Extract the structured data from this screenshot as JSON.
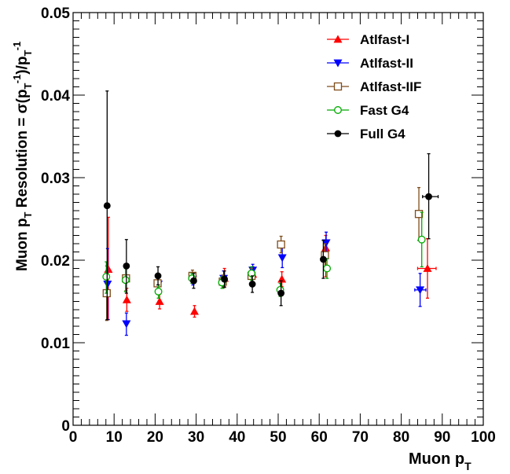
{
  "chart_data": {
    "type": "scatter",
    "title": "",
    "xlabel": "Muon p",
    "xlabel_sub": "T",
    "ylabel_parts": {
      "a": "Muon p",
      "a_sub": "T",
      "b": " Resolution = σ(p",
      "b_sub": "T",
      "b_sup": "-1",
      "c": ")/p",
      "c_sub": "T",
      "c_sup": "-1"
    },
    "xlim": [
      0,
      100
    ],
    "ylim": [
      0,
      0.05
    ],
    "x_ticks": [
      "0",
      "10",
      "20",
      "30",
      "40",
      "50",
      "60",
      "70",
      "80",
      "90",
      "100"
    ],
    "y_ticks": [
      "0",
      "0.01",
      "0.02",
      "0.03",
      "0.04",
      "0.05"
    ],
    "legend_position": "top-right",
    "series": [
      {
        "name": "Atlfast-I",
        "color": "#ff0000",
        "marker": "triangle-up",
        "points": [
          {
            "x": 8.6,
            "y": 0.0189,
            "ylo": 0.0128,
            "yhi": 0.0252
          },
          {
            "x": 13.1,
            "y": 0.0152,
            "ylo": 0.0138,
            "yhi": 0.0166
          },
          {
            "x": 21.1,
            "y": 0.015,
            "ylo": 0.0141,
            "yhi": 0.0159
          },
          {
            "x": 29.6,
            "y": 0.0138,
            "ylo": 0.0131,
            "yhi": 0.0145
          },
          {
            "x": 36.9,
            "y": 0.0178,
            "ylo": 0.0168,
            "yhi": 0.019
          },
          {
            "x": 43.8,
            "y": 0.0183,
            "ylo": 0.0174,
            "yhi": 0.0192
          },
          {
            "x": 50.9,
            "y": 0.0177,
            "ylo": 0.0168,
            "yhi": 0.0186
          },
          {
            "x": 61.6,
            "y": 0.0215,
            "ylo": 0.018,
            "yhi": 0.023
          },
          {
            "x": 86.4,
            "y": 0.019,
            "ylo": 0.0154,
            "yhi": 0.0226,
            "xlo": 84.0,
            "xhi": 88.5
          }
        ]
      },
      {
        "name": "Atlfast-II",
        "color": "#0000ff",
        "marker": "triangle-down",
        "points": [
          {
            "x": 8.4,
            "y": 0.0171,
            "ylo": 0.0128,
            "yhi": 0.0214
          },
          {
            "x": 13.0,
            "y": 0.0123,
            "ylo": 0.0109,
            "yhi": 0.0136
          },
          {
            "x": 20.8,
            "y": 0.0171,
            "ylo": 0.0162,
            "yhi": 0.018
          },
          {
            "x": 29.2,
            "y": 0.0177,
            "ylo": 0.017,
            "yhi": 0.0184
          },
          {
            "x": 36.7,
            "y": 0.0178,
            "ylo": 0.0169,
            "yhi": 0.0187
          },
          {
            "x": 43.8,
            "y": 0.0188,
            "ylo": 0.018,
            "yhi": 0.0195
          },
          {
            "x": 51.0,
            "y": 0.0203,
            "ylo": 0.0191,
            "yhi": 0.0215
          },
          {
            "x": 61.7,
            "y": 0.0221,
            "ylo": 0.0208,
            "yhi": 0.0234
          },
          {
            "x": 84.6,
            "y": 0.0164,
            "ylo": 0.0144,
            "yhi": 0.0184,
            "xlo": 83.3,
            "xhi": 86.0
          }
        ]
      },
      {
        "name": "Atlfast-IIF",
        "color": "#7f4c1a",
        "marker": "square-open",
        "points": [
          {
            "x": 8.2,
            "y": 0.016,
            "ylo": 0.0127,
            "yhi": 0.0193
          },
          {
            "x": 12.9,
            "y": 0.0178,
            "ylo": 0.0163,
            "yhi": 0.0192
          },
          {
            "x": 20.6,
            "y": 0.0172,
            "ylo": 0.0163,
            "yhi": 0.0181
          },
          {
            "x": 29.1,
            "y": 0.0181,
            "ylo": 0.0174,
            "yhi": 0.0188
          },
          {
            "x": 36.5,
            "y": 0.0174,
            "ylo": 0.0166,
            "yhi": 0.0182
          },
          {
            "x": 43.5,
            "y": 0.0181,
            "ylo": 0.0172,
            "yhi": 0.019
          },
          {
            "x": 50.7,
            "y": 0.0219,
            "ylo": 0.0209,
            "yhi": 0.0229
          },
          {
            "x": 61.4,
            "y": 0.0206,
            "ylo": 0.0192,
            "yhi": 0.022
          },
          {
            "x": 84.3,
            "y": 0.0256,
            "ylo": 0.0224,
            "yhi": 0.0288
          }
        ]
      },
      {
        "name": "Fast G4",
        "color": "#00aa00",
        "marker": "circle-open",
        "points": [
          {
            "x": 8.1,
            "y": 0.018,
            "ylo": 0.016,
            "yhi": 0.0198
          },
          {
            "x": 12.8,
            "y": 0.0176,
            "ylo": 0.0162,
            "yhi": 0.019
          },
          {
            "x": 20.8,
            "y": 0.0162,
            "ylo": 0.0154,
            "yhi": 0.017
          },
          {
            "x": 29.0,
            "y": 0.0178,
            "ylo": 0.0172,
            "yhi": 0.0184
          },
          {
            "x": 36.3,
            "y": 0.0173,
            "ylo": 0.0166,
            "yhi": 0.018
          },
          {
            "x": 43.5,
            "y": 0.0184,
            "ylo": 0.0176,
            "yhi": 0.0192
          },
          {
            "x": 50.5,
            "y": 0.0164,
            "ylo": 0.0156,
            "yhi": 0.0172
          },
          {
            "x": 61.9,
            "y": 0.019,
            "ylo": 0.0178,
            "yhi": 0.0202
          },
          {
            "x": 85.0,
            "y": 0.0225,
            "ylo": 0.0192,
            "yhi": 0.0258
          }
        ]
      },
      {
        "name": "Full G4",
        "color": "#000000",
        "marker": "circle-filled",
        "points": [
          {
            "x": 8.3,
            "y": 0.0266,
            "ylo": 0.0128,
            "yhi": 0.0405
          },
          {
            "x": 13.0,
            "y": 0.0193,
            "ylo": 0.016,
            "yhi": 0.0225
          },
          {
            "x": 20.7,
            "y": 0.0181,
            "ylo": 0.017,
            "yhi": 0.0192
          },
          {
            "x": 29.4,
            "y": 0.0175,
            "ylo": 0.0166,
            "yhi": 0.0184
          },
          {
            "x": 36.9,
            "y": 0.0177,
            "ylo": 0.0167,
            "yhi": 0.0187
          },
          {
            "x": 43.7,
            "y": 0.0171,
            "ylo": 0.0161,
            "yhi": 0.0181
          },
          {
            "x": 50.7,
            "y": 0.016,
            "ylo": 0.0145,
            "yhi": 0.0175
          },
          {
            "x": 61.0,
            "y": 0.0201,
            "ylo": 0.0178,
            "yhi": 0.0224
          },
          {
            "x": 86.7,
            "y": 0.0277,
            "ylo": 0.0226,
            "yhi": 0.0329,
            "xlo": 85.2,
            "xhi": 89.0
          }
        ]
      }
    ]
  }
}
